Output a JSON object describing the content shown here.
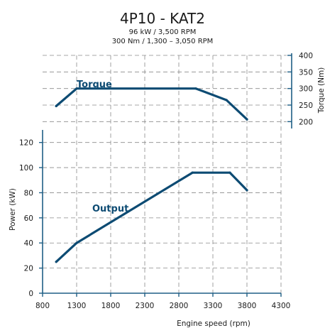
{
  "title": "4P10 - KAT2",
  "subtitle_lines": [
    "96 kW / 3,500 RPM",
    "300 Nm / 1,300 – 3,050 RPM"
  ],
  "colors": {
    "series": "#0d4b73",
    "axis": "#1f5f86",
    "grid": "#8a8a8a",
    "text": "#1a1a1a"
  },
  "chart_data": [
    {
      "type": "line",
      "xlabel": "Engine speed (rpm)",
      "x_ticks": [
        800,
        1300,
        1800,
        2300,
        2800,
        3300,
        3800,
        4300
      ],
      "xlim": [
        800,
        4300
      ],
      "ylabel": "Torque (Nm)",
      "ylim": [
        190,
        400
      ],
      "y_ticks": [
        200,
        250,
        300,
        350,
        400
      ],
      "y_axis_side": "right",
      "grid": true,
      "series": [
        {
          "name": "Torque",
          "x": [
            1000,
            1300,
            3050,
            3500,
            3800
          ],
          "y": [
            247,
            300,
            300,
            265,
            207
          ]
        }
      ]
    },
    {
      "type": "line",
      "xlabel": "Engine speed (rpm)",
      "x_ticks": [
        800,
        1300,
        1800,
        2300,
        2800,
        3300,
        3800,
        4300
      ],
      "xlim": [
        800,
        4300
      ],
      "ylabel": "Power (kW)",
      "ylim": [
        0,
        130
      ],
      "y_ticks": [
        0,
        20,
        40,
        60,
        80,
        100,
        120
      ],
      "y_axis_side": "left",
      "grid": true,
      "series": [
        {
          "name": "Output",
          "x": [
            1000,
            1300,
            3000,
            3550,
            3800
          ],
          "y": [
            25,
            40,
            96,
            96,
            82
          ]
        }
      ]
    }
  ]
}
